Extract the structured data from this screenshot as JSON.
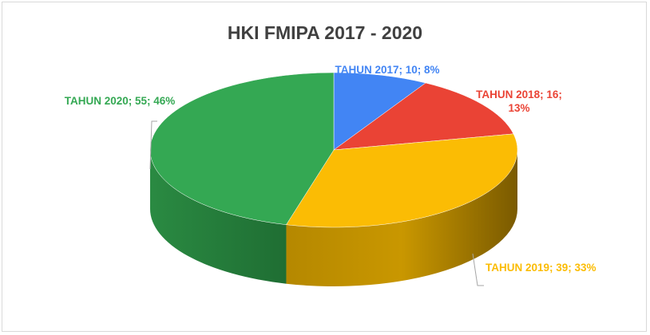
{
  "chart_data": {
    "type": "pie",
    "title": "HKI FMIPA 2017 - 2020",
    "categories": [
      "TAHUN 2017",
      "TAHUN 2018",
      "TAHUN 2019",
      "TAHUN 2020"
    ],
    "values": [
      10,
      16,
      39,
      55
    ],
    "value_labels": [
      "TAHUN 2017; 10; 8%",
      "TAHUN 2018; 16; 13%",
      "TAHUN 2019; 39; 33%",
      "TAHUN 2020; 55; 46%"
    ],
    "colors": [
      "#4285f4",
      "#ea4335",
      "#fbbc04",
      "#34a853"
    ]
  }
}
